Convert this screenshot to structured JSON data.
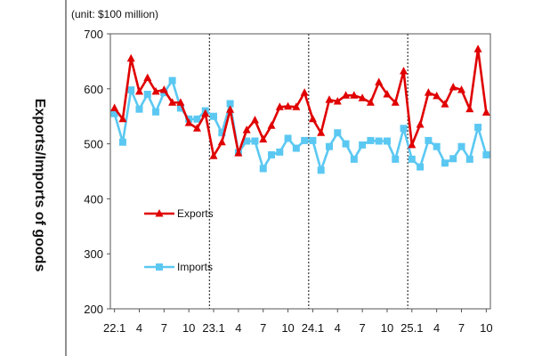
{
  "chart_data": {
    "type": "line",
    "unit_note": "(unit: $100 million)",
    "ylabel": "Exports/Imports of goods",
    "xlabel": "",
    "ylim": [
      200,
      700
    ],
    "yticks": [
      200,
      300,
      400,
      500,
      600,
      700
    ],
    "x_tick_labels": [
      {
        "index": 0,
        "label": "22.1"
      },
      {
        "index": 3,
        "label": "4"
      },
      {
        "index": 6,
        "label": "7"
      },
      {
        "index": 9,
        "label": "10"
      },
      {
        "index": 12,
        "label": "23.1"
      },
      {
        "index": 15,
        "label": "4"
      },
      {
        "index": 18,
        "label": "7"
      },
      {
        "index": 21,
        "label": "10"
      },
      {
        "index": 24,
        "label": "24.1"
      },
      {
        "index": 27,
        "label": "4"
      },
      {
        "index": 30,
        "label": "7"
      },
      {
        "index": 33,
        "label": "10"
      },
      {
        "index": 36,
        "label": "25.1"
      },
      {
        "index": 39,
        "label": "4"
      },
      {
        "index": 42,
        "label": "7"
      },
      {
        "index": 45,
        "label": "10"
      }
    ],
    "year_separators_after_index": [
      11,
      23,
      35
    ],
    "series": [
      {
        "name": "Exports",
        "color": "#e00000",
        "marker": "triangle",
        "values": [
          565,
          545,
          655,
          595,
          620,
          595,
          598,
          575,
          575,
          538,
          528,
          555,
          478,
          503,
          562,
          483,
          525,
          543,
          508,
          533,
          567,
          568,
          567,
          593,
          545,
          520,
          580,
          577,
          588,
          588,
          583,
          575,
          612,
          590,
          575,
          632,
          498,
          535,
          593,
          587,
          572,
          603,
          598,
          563,
          672,
          557
        ]
      },
      {
        "name": "Imports",
        "color": "#5bc8f2",
        "marker": "square",
        "values": [
          555,
          503,
          598,
          563,
          590,
          558,
          593,
          615,
          565,
          545,
          545,
          560,
          550,
          520,
          573,
          484,
          505,
          505,
          455,
          480,
          485,
          510,
          492,
          506,
          506,
          452,
          495,
          520,
          500,
          472,
          498,
          506,
          505,
          505,
          472,
          528,
          472,
          458,
          506,
          495,
          465,
          473,
          495,
          472,
          530,
          480
        ]
      }
    ]
  }
}
